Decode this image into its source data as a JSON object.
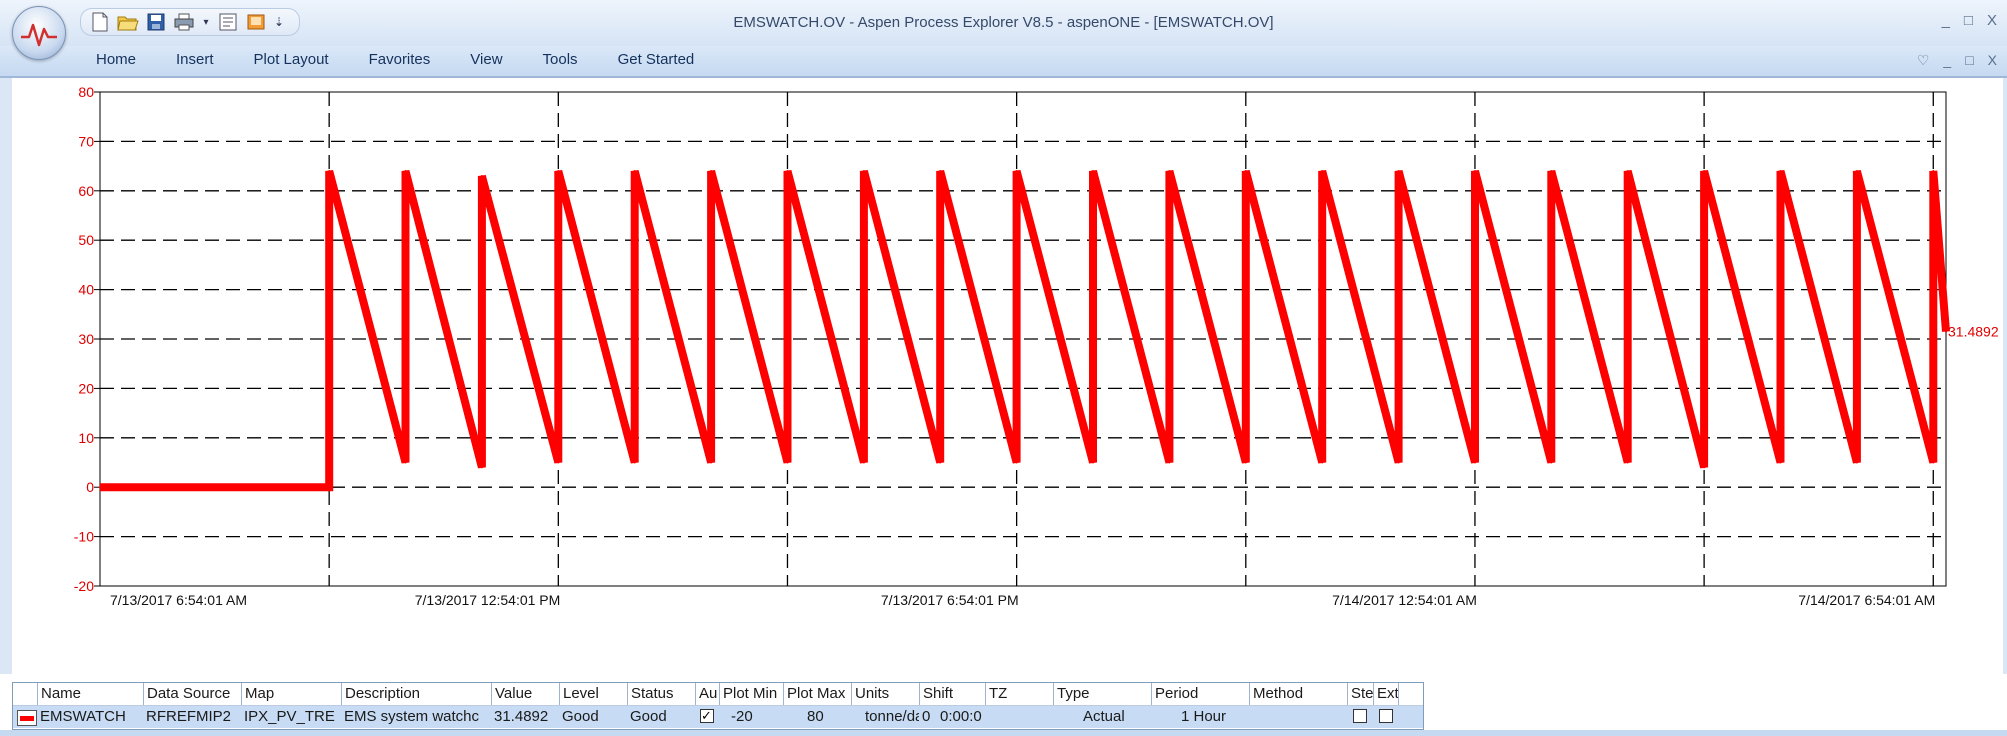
{
  "window": {
    "title": "EMSWATCH.OV - Aspen Process Explorer V8.5 - aspenONE - [EMSWATCH.OV]",
    "controls": {
      "minimize": "_",
      "restore": "□",
      "close": "X"
    },
    "mdi_controls": {
      "dropdown": "♡",
      "minimize": "_",
      "restore": "□",
      "close": "X"
    }
  },
  "quick_access": [
    "new-icon",
    "open-icon",
    "save-icon",
    "print-icon",
    "dropdown-icon",
    "properties-icon",
    "book-icon",
    "customize-icon"
  ],
  "menu": [
    "Home",
    "Insert",
    "Plot Layout",
    "Favorites",
    "View",
    "Tools",
    "Get Started"
  ],
  "colors": {
    "trend": "#ff0000",
    "axis_text": "#e00000",
    "gridline": "#000000",
    "ribbon": "#c5d9f1",
    "legend_row": "#c7dcf4"
  },
  "chart_data": {
    "type": "line",
    "title": "",
    "xlabel": "",
    "ylabel": "",
    "ylim": [
      -20,
      80
    ],
    "yticks": [
      -20,
      -10,
      0,
      10,
      20,
      30,
      40,
      50,
      60,
      70,
      80
    ],
    "xlim": [
      "7/13/2017 6:54:01 AM",
      "7/14/2017 7:04:01 AM"
    ],
    "xticks": [
      "7/13/2017 6:54:01 AM",
      "7/13/2017 12:54:01 PM",
      "7/13/2017 6:54:01 PM",
      "7/14/2017 12:54:01 AM",
      "7/14/2017 6:54:01 AM"
    ],
    "grid": true,
    "current_value_label": "31.4892",
    "series": [
      {
        "name": "EMSWATCH",
        "x": [
          "7/13/2017 6:54:01 AM",
          "7/13/2017 9:54:01 AM",
          "7/13/2017 9:54:01 AM",
          "7/13/2017 10:54:01 AM",
          "7/13/2017 10:54:01 AM",
          "7/13/2017 11:54:01 AM",
          "7/13/2017 11:54:01 AM",
          "7/13/2017 12:54:01 PM",
          "7/13/2017 12:54:01 PM",
          "7/13/2017 1:54:01 PM",
          "7/13/2017 1:54:01 PM",
          "7/13/2017 2:54:01 PM",
          "7/13/2017 2:54:01 PM",
          "7/13/2017 3:54:01 PM",
          "7/13/2017 3:54:01 PM",
          "7/13/2017 4:54:01 PM",
          "7/13/2017 4:54:01 PM",
          "7/13/2017 5:54:01 PM",
          "7/13/2017 5:54:01 PM",
          "7/13/2017 6:54:01 PM",
          "7/13/2017 6:54:01 PM",
          "7/13/2017 7:54:01 PM",
          "7/13/2017 7:54:01 PM",
          "7/13/2017 8:54:01 PM",
          "7/13/2017 8:54:01 PM",
          "7/13/2017 9:54:01 PM",
          "7/13/2017 9:54:01 PM",
          "7/13/2017 10:54:01 PM",
          "7/13/2017 10:54:01 PM",
          "7/13/2017 11:54:01 PM",
          "7/13/2017 11:54:01 PM",
          "7/14/2017 12:54:01 AM",
          "7/14/2017 12:54:01 AM",
          "7/14/2017 1:54:01 AM",
          "7/14/2017 1:54:01 AM",
          "7/14/2017 2:54:01 AM",
          "7/14/2017 2:54:01 AM",
          "7/14/2017 3:54:01 AM",
          "7/14/2017 3:54:01 AM",
          "7/14/2017 4:54:01 AM",
          "7/14/2017 4:54:01 AM",
          "7/14/2017 5:54:01 AM",
          "7/14/2017 5:54:01 AM",
          "7/14/2017 6:54:01 AM",
          "7/14/2017 6:54:01 AM",
          "7/14/2017 7:04:01 AM"
        ],
        "y": [
          0,
          0,
          64,
          5,
          64,
          4,
          63,
          5,
          64,
          5,
          64,
          5,
          64,
          5,
          64,
          5,
          64,
          5,
          64,
          5,
          64,
          5,
          64,
          5,
          64,
          5,
          64,
          5,
          64,
          5,
          64,
          5,
          64,
          5,
          64,
          5,
          64,
          4,
          64,
          5,
          64,
          5,
          64,
          5,
          64,
          31.4892
        ]
      }
    ]
  },
  "legend": {
    "headers": [
      "Name",
      "Data Source",
      "Map",
      "Description",
      "Value",
      "Level",
      "Status",
      "Au",
      "Plot Min",
      "Plot Max",
      "Units",
      "Shift",
      "TZ",
      "Type",
      "Period",
      "Method",
      "Ste",
      "Ext"
    ],
    "row": {
      "name": "EMSWATCH",
      "data_source": "RFREFMIP2",
      "map": "IPX_PV_TRE",
      "description": "EMS system watchc",
      "value": "31.4892",
      "level": "Good",
      "status": "Good",
      "auto_checked": true,
      "plot_min": "-20",
      "plot_max": "80",
      "units": "tonne/da",
      "shift": "0",
      "shift_time": "0:00:0",
      "tz": "",
      "type": "Actual",
      "period": "1 Hour",
      "method": "",
      "step_checked": false,
      "ext_checked": false
    }
  }
}
